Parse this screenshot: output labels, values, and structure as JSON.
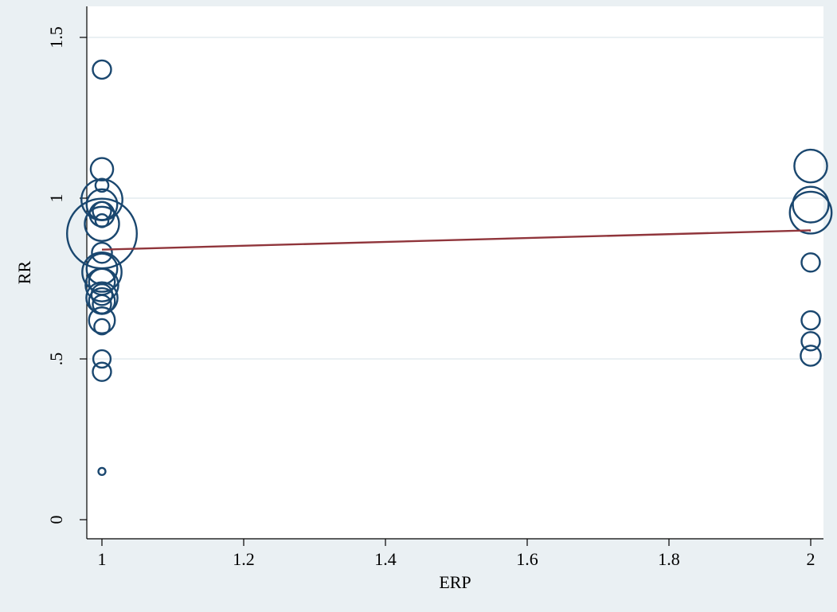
{
  "chart_data": {
    "type": "scatter",
    "title": "",
    "xlabel": "ERP",
    "ylabel": "RR",
    "xlim": [
      1,
      2
    ],
    "ylim": [
      0,
      1.5
    ],
    "x_ticks": [
      1,
      1.2,
      1.4,
      1.6,
      1.8,
      2
    ],
    "x_tick_labels": [
      "1",
      "1.2",
      "1.4",
      "1.6",
      "1.8",
      "2"
    ],
    "y_ticks": [
      0,
      0.5,
      1,
      1.5
    ],
    "y_tick_labels": [
      "0",
      ".5",
      "1",
      "1.5"
    ],
    "grid": true,
    "legend": "none",
    "colors": {
      "background": "#eaf0f3",
      "plot_background": "#ffffff",
      "grid": "#eaf0f3",
      "marker": "#1a476f",
      "fit_line": "#90353b"
    },
    "points": [
      {
        "x": 1,
        "y": 1.4,
        "weight": 1.0
      },
      {
        "x": 1,
        "y": 1.09,
        "weight": 1.5
      },
      {
        "x": 1,
        "y": 1.04,
        "weight": 0.5
      },
      {
        "x": 1,
        "y": 0.995,
        "weight": 5.0
      },
      {
        "x": 1,
        "y": 0.98,
        "weight": 2.8
      },
      {
        "x": 1,
        "y": 0.96,
        "weight": 1.0
      },
      {
        "x": 1,
        "y": 0.95,
        "weight": 1.8
      },
      {
        "x": 1,
        "y": 0.92,
        "weight": 3.5
      },
      {
        "x": 1,
        "y": 0.93,
        "weight": 0.5
      },
      {
        "x": 1,
        "y": 0.89,
        "weight": 14.5
      },
      {
        "x": 1,
        "y": 0.83,
        "weight": 1.2
      },
      {
        "x": 1,
        "y": 0.78,
        "weight": 2.8
      },
      {
        "x": 1,
        "y": 0.77,
        "weight": 4.6
      },
      {
        "x": 1,
        "y": 0.74,
        "weight": 2.0
      },
      {
        "x": 1,
        "y": 0.73,
        "weight": 3.2
      },
      {
        "x": 1,
        "y": 0.7,
        "weight": 1.3
      },
      {
        "x": 1,
        "y": 0.69,
        "weight": 2.9
      },
      {
        "x": 1,
        "y": 0.68,
        "weight": 2.0
      },
      {
        "x": 1,
        "y": 0.67,
        "weight": 1.0
      },
      {
        "x": 1,
        "y": 0.62,
        "weight": 2.0
      },
      {
        "x": 1,
        "y": 0.6,
        "weight": 0.7
      },
      {
        "x": 1,
        "y": 0.5,
        "weight": 0.9
      },
      {
        "x": 1,
        "y": 0.46,
        "weight": 1.0
      },
      {
        "x": 1,
        "y": 0.15,
        "weight": 0.15
      },
      {
        "x": 2,
        "y": 1.1,
        "weight": 3.2
      },
      {
        "x": 2,
        "y": 0.98,
        "weight": 3.8
      },
      {
        "x": 2,
        "y": 0.955,
        "weight": 5.2
      },
      {
        "x": 2,
        "y": 0.8,
        "weight": 1.0
      },
      {
        "x": 2,
        "y": 0.62,
        "weight": 1.0
      },
      {
        "x": 2,
        "y": 0.555,
        "weight": 1.0
      },
      {
        "x": 2,
        "y": 0.51,
        "weight": 1.2
      }
    ],
    "fit_line": {
      "x": [
        1,
        2
      ],
      "y": [
        0.84,
        0.9
      ]
    }
  }
}
